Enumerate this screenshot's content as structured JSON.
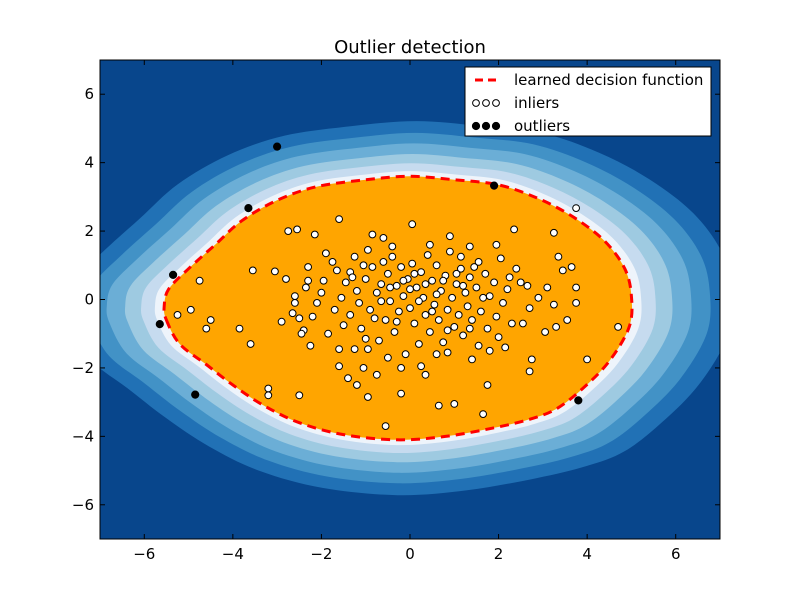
{
  "chart_data": {
    "type": "scatter",
    "title": "Outlier detection",
    "xlabel": "",
    "ylabel": "",
    "xlim": [
      -7,
      7
    ],
    "ylim": [
      -7,
      7
    ],
    "xticks": [
      -6,
      -4,
      -2,
      0,
      2,
      4,
      6
    ],
    "yticks": [
      -6,
      -4,
      -2,
      0,
      2,
      4,
      6
    ],
    "tick_labels_x": [
      "−6",
      "−4",
      "−2",
      "0",
      "2",
      "4",
      "6"
    ],
    "tick_labels_y": [
      "−6",
      "−4",
      "−2",
      "0",
      "2",
      "4",
      "6"
    ],
    "grid": false,
    "legend_position": "top-right",
    "colors": {
      "background": "#08468c",
      "levels": [
        "#2171b5",
        "#4292c6",
        "#6baed6",
        "#9ecae1",
        "#c6dbef",
        "#eef4fb"
      ],
      "inside_region": "#ffa500",
      "decision_line": "#ff0000",
      "inlier_fill": "#ffffff",
      "outlier_fill": "#000000"
    },
    "legend": [
      {
        "label": "learned decision function",
        "kind": "dashed-line"
      },
      {
        "label": "inliers",
        "kind": "open-marker"
      },
      {
        "label": "outliers",
        "kind": "filled-marker"
      }
    ],
    "decision_boundary": [
      [
        -5.5,
        -0.6
      ],
      [
        -5.2,
        -1.3
      ],
      [
        -4.6,
        -1.9
      ],
      [
        -4.0,
        -2.5
      ],
      [
        -3.3,
        -3.1
      ],
      [
        -2.5,
        -3.6
      ],
      [
        -1.5,
        -3.95
      ],
      [
        -0.3,
        -4.1
      ],
      [
        0.8,
        -4.0
      ],
      [
        1.9,
        -3.75
      ],
      [
        2.7,
        -3.5
      ],
      [
        3.3,
        -3.2
      ],
      [
        3.9,
        -2.6
      ],
      [
        4.5,
        -1.8
      ],
      [
        4.95,
        -0.8
      ],
      [
        5.0,
        0.1
      ],
      [
        4.85,
        0.9
      ],
      [
        4.4,
        1.7
      ],
      [
        3.7,
        2.4
      ],
      [
        2.9,
        2.95
      ],
      [
        2.0,
        3.35
      ],
      [
        1.0,
        3.5
      ],
      [
        0.0,
        3.6
      ],
      [
        -1.0,
        3.5
      ],
      [
        -2.1,
        3.3
      ],
      [
        -3.0,
        2.9
      ],
      [
        -3.8,
        2.3
      ],
      [
        -4.4,
        1.6
      ],
      [
        -5.0,
        0.9
      ],
      [
        -5.45,
        0.3
      ],
      [
        -5.55,
        -0.2
      ]
    ],
    "outliers": [
      [
        -3.0,
        4.47
      ],
      [
        -3.65,
        2.67
      ],
      [
        -5.35,
        0.72
      ],
      [
        -5.65,
        -0.72
      ],
      [
        -4.85,
        -2.78
      ],
      [
        1.9,
        3.33
      ],
      [
        3.8,
        -2.95
      ]
    ],
    "inliers": [
      [
        -4.75,
        0.55
      ],
      [
        -5.25,
        -0.45
      ],
      [
        -4.95,
        -0.3
      ],
      [
        -4.5,
        -0.6
      ],
      [
        -4.6,
        -0.85
      ],
      [
        -3.85,
        -0.85
      ],
      [
        -3.6,
        -1.3
      ],
      [
        -3.55,
        0.85
      ],
      [
        -3.05,
        0.82
      ],
      [
        -2.5,
        -0.55
      ],
      [
        -2.8,
        0.6
      ],
      [
        -2.9,
        -0.65
      ],
      [
        -3.2,
        -2.6
      ],
      [
        -3.2,
        -2.8
      ],
      [
        -2.5,
        -2.8
      ],
      [
        -2.75,
        2.0
      ],
      [
        -2.55,
        2.05
      ],
      [
        -2.15,
        1.9
      ],
      [
        -1.6,
        2.35
      ],
      [
        -1.35,
        0.8
      ],
      [
        -1.25,
        -1.45
      ],
      [
        -1.6,
        -1.95
      ],
      [
        -1.4,
        -2.3
      ],
      [
        -1.05,
        -2.0
      ],
      [
        -0.95,
        -2.85
      ],
      [
        -1.2,
        -2.5
      ],
      [
        -0.75,
        -2.2
      ],
      [
        -0.55,
        -3.7
      ],
      [
        -0.2,
        -2.75
      ],
      [
        0.65,
        -3.1
      ],
      [
        1.0,
        -3.05
      ],
      [
        1.65,
        -3.35
      ],
      [
        1.75,
        -2.5
      ],
      [
        1.4,
        -1.75
      ],
      [
        2.15,
        -1.4
      ],
      [
        2.75,
        -1.75
      ],
      [
        2.7,
        -2.1
      ],
      [
        3.05,
        -0.95
      ],
      [
        3.3,
        -0.8
      ],
      [
        3.55,
        -0.6
      ],
      [
        4.0,
        -1.75
      ],
      [
        4.7,
        -0.8
      ],
      [
        3.75,
        -0.1
      ],
      [
        3.75,
        0.35
      ],
      [
        3.65,
        0.95
      ],
      [
        3.35,
        1.25
      ],
      [
        3.25,
        1.95
      ],
      [
        3.45,
        0.85
      ],
      [
        3.1,
        0.35
      ],
      [
        2.9,
        0.05
      ],
      [
        3.25,
        -0.15
      ],
      [
        2.35,
        2.05
      ],
      [
        2.7,
        -0.25
      ],
      [
        2.55,
        -0.7
      ],
      [
        3.75,
        2.67
      ],
      [
        0.05,
        2.2
      ],
      [
        -0.4,
        1.55
      ],
      [
        -0.6,
        1.8
      ],
      [
        -0.85,
        1.9
      ],
      [
        0.45,
        1.6
      ],
      [
        0.9,
        1.85
      ],
      [
        1.35,
        1.55
      ],
      [
        1.15,
        1.25
      ],
      [
        1.95,
        1.6
      ],
      [
        2.25,
        0.65
      ],
      [
        2.5,
        0.5
      ],
      [
        -2.2,
        -0.5
      ],
      [
        -2.0,
        0.2
      ],
      [
        -2.1,
        -0.1
      ],
      [
        -1.95,
        0.55
      ],
      [
        -1.75,
        1.1
      ],
      [
        -1.9,
        1.35
      ],
      [
        -1.55,
        0.05
      ],
      [
        -1.45,
        0.5
      ],
      [
        -1.35,
        -0.45
      ],
      [
        -1.25,
        1.25
      ],
      [
        -1.2,
        0.25
      ],
      [
        -1.1,
        -0.85
      ],
      [
        -1.0,
        0.6
      ],
      [
        -0.95,
        1.45
      ],
      [
        -0.9,
        -0.3
      ],
      [
        -0.85,
        0.95
      ],
      [
        -0.75,
        0.2
      ],
      [
        -0.7,
        -1.2
      ],
      [
        -0.65,
        0.45
      ],
      [
        -0.6,
        1.1
      ],
      [
        -0.55,
        -0.6
      ],
      [
        -0.5,
        0.75
      ],
      [
        -0.45,
        -0.05
      ],
      [
        -0.4,
        1.25
      ],
      [
        -0.35,
        -0.95
      ],
      [
        -0.3,
        0.4
      ],
      [
        -0.25,
        -0.35
      ],
      [
        -0.2,
        0.95
      ],
      [
        -0.15,
        0.1
      ],
      [
        -0.1,
        -1.6
      ],
      [
        -0.05,
        0.6
      ],
      [
        0.0,
        -0.25
      ],
      [
        0.05,
        1.05
      ],
      [
        0.1,
        -0.7
      ],
      [
        0.15,
        0.35
      ],
      [
        0.2,
        -1.3
      ],
      [
        0.25,
        0.8
      ],
      [
        0.3,
        0.05
      ],
      [
        0.35,
        -0.45
      ],
      [
        0.4,
        1.3
      ],
      [
        0.45,
        -0.95
      ],
      [
        0.5,
        0.55
      ],
      [
        0.55,
        -0.15
      ],
      [
        0.6,
        1.0
      ],
      [
        0.65,
        -0.6
      ],
      [
        0.7,
        0.25
      ],
      [
        0.75,
        -1.25
      ],
      [
        0.8,
        0.7
      ],
      [
        0.85,
        -0.3
      ],
      [
        0.9,
        1.4
      ],
      [
        0.95,
        0.05
      ],
      [
        1.0,
        -0.8
      ],
      [
        1.05,
        0.45
      ],
      [
        1.1,
        -0.45
      ],
      [
        1.15,
        0.9
      ],
      [
        1.2,
        -1.05
      ],
      [
        1.25,
        0.2
      ],
      [
        1.3,
        -0.2
      ],
      [
        1.35,
        0.65
      ],
      [
        1.4,
        -0.6
      ],
      [
        1.5,
        0.35
      ],
      [
        1.55,
        1.1
      ],
      [
        1.6,
        -0.35
      ],
      [
        1.7,
        0.75
      ],
      [
        1.75,
        -0.85
      ],
      [
        1.8,
        0.1
      ],
      [
        1.9,
        0.5
      ],
      [
        1.95,
        -0.5
      ],
      [
        2.05,
        1.2
      ],
      [
        2.1,
        -0.1
      ],
      [
        2.2,
        0.3
      ],
      [
        2.3,
        -0.7
      ],
      [
        -1.7,
        -0.3
      ],
      [
        -1.65,
        0.85
      ],
      [
        -1.5,
        -0.75
      ],
      [
        -1.3,
        0.65
      ],
      [
        -1.15,
        -0.1
      ],
      [
        -1.05,
        1.0
      ],
      [
        -0.8,
        -0.55
      ],
      [
        -0.65,
        -0.05
      ],
      [
        -0.45,
        0.35
      ],
      [
        -0.3,
        -0.65
      ],
      [
        -0.15,
        0.55
      ],
      [
        0.0,
        0.3
      ],
      [
        0.1,
        0.75
      ],
      [
        0.2,
        -0.05
      ],
      [
        0.35,
        0.45
      ],
      [
        0.5,
        -0.35
      ],
      [
        0.6,
        0.15
      ],
      [
        0.75,
        0.55
      ],
      [
        0.85,
        -0.9
      ],
      [
        1.05,
        0.75
      ],
      [
        1.2,
        0.4
      ],
      [
        1.35,
        -0.85
      ],
      [
        1.45,
        0.95
      ],
      [
        1.65,
        0.05
      ],
      [
        -2.4,
        -0.9
      ],
      [
        -2.35,
        0.35
      ],
      [
        -2.6,
        -0.1
      ],
      [
        -2.3,
        0.95
      ],
      [
        -1.85,
        -1.0
      ],
      [
        -1.6,
        -1.45
      ],
      [
        -0.95,
        -1.45
      ],
      [
        -0.5,
        -1.7
      ],
      [
        0.25,
        -1.95
      ],
      [
        0.85,
        -1.55
      ],
      [
        1.55,
        -1.35
      ],
      [
        2.0,
        -1.1
      ],
      [
        0.35,
        -2.2
      ],
      [
        -0.2,
        -2.0
      ],
      [
        0.6,
        -1.6
      ],
      [
        -1.0,
        -1.15
      ],
      [
        -2.25,
        -1.35
      ],
      [
        -2.45,
        -1.0
      ],
      [
        -2.65,
        -0.4
      ],
      [
        -2.6,
        0.1
      ],
      [
        -2.3,
        0.55
      ],
      [
        1.8,
        -1.5
      ],
      [
        2.4,
        0.9
      ],
      [
        2.65,
        0.4
      ]
    ]
  }
}
